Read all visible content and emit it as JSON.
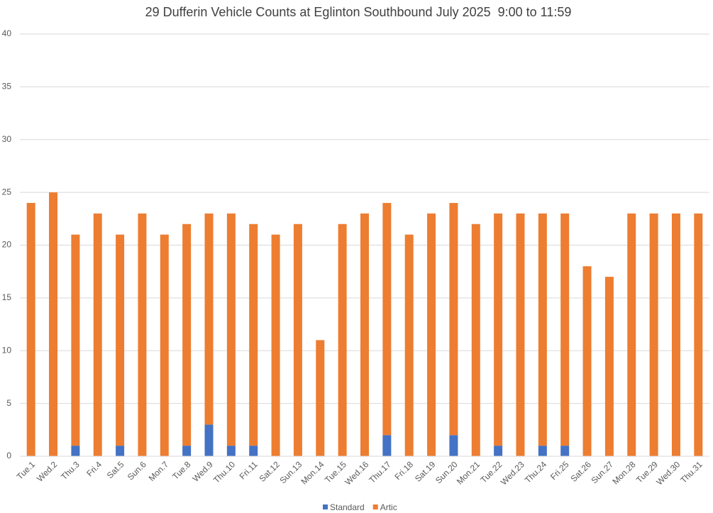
{
  "chart_data": {
    "type": "stacked-bar",
    "title": "29 Dufferin Vehicle Counts at Eglinton Southbound July 2025  9:00 to 11:59",
    "categories": [
      "Tue.1",
      "Wed.2",
      "Thu.3",
      "Fri.4",
      "Sat.5",
      "Sun.6",
      "Mon.7",
      "Tue.8",
      "Wed.9",
      "Thu.10",
      "Fri.11",
      "Sat.12",
      "Sun.13",
      "Mon.14",
      "Tue.15",
      "Wed.16",
      "Thu.17",
      "Fri.18",
      "Sat.19",
      "Sun.20",
      "Mon.21",
      "Tue.22",
      "Wed.23",
      "Thu.24",
      "Fri.25",
      "Sat.26",
      "Sun.27",
      "Mon.28",
      "Tue.29",
      "Wed.30",
      "Thu.31"
    ],
    "series": [
      {
        "name": "Standard",
        "color": "#4472c4",
        "values": [
          0,
          0,
          1,
          0,
          1,
          0,
          0,
          1,
          3,
          1,
          1,
          0,
          0,
          0,
          0,
          0,
          2,
          0,
          0,
          2,
          0,
          1,
          0,
          1,
          1,
          0,
          0,
          0,
          0,
          0,
          0
        ]
      },
      {
        "name": "Artic",
        "color": "#ed7d31",
        "values": [
          24,
          25,
          20,
          23,
          20,
          23,
          21,
          21,
          20,
          22,
          21,
          21,
          22,
          11,
          22,
          23,
          22,
          21,
          23,
          22,
          22,
          22,
          23,
          22,
          22,
          18,
          17,
          23,
          23,
          23,
          23
        ]
      }
    ],
    "ylim": [
      0,
      40
    ],
    "yticks": [
      0,
      5,
      10,
      15,
      20,
      25,
      30,
      35,
      40
    ],
    "grid": true,
    "legend": "bottom"
  }
}
